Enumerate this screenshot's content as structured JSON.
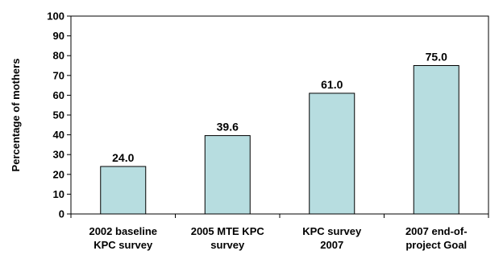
{
  "chart_data": {
    "type": "bar",
    "categories": [
      [
        "2002 baseline",
        "KPC survey"
      ],
      [
        "2005 MTE KPC",
        "survey"
      ],
      [
        "KPC survey",
        "2007"
      ],
      [
        "2007 end-of-",
        "project Goal"
      ]
    ],
    "values": [
      24.0,
      39.6,
      61.0,
      75.0
    ],
    "value_labels": [
      "24.0",
      "39.6",
      "61.0",
      "75.0"
    ],
    "ylabel": "Percentage of mothers",
    "xlabel": "",
    "title": "",
    "ylim": [
      0,
      100
    ],
    "yticks": [
      "0",
      "10",
      "20",
      "30",
      "40",
      "50",
      "60",
      "70",
      "80",
      "90",
      "100"
    ],
    "grid": false,
    "legend": "none",
    "colors": {
      "bar_fill": "#b7dde0",
      "bar_stroke": "#000000",
      "axis": "#000000"
    }
  }
}
